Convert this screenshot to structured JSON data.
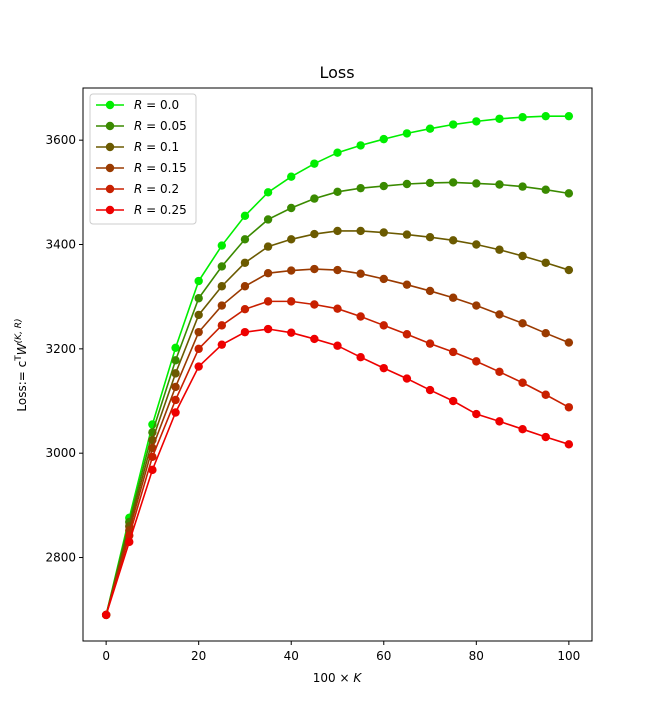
{
  "chart_data": {
    "type": "line",
    "title": "Loss",
    "xlabel": {
      "prefix": "100 × ",
      "var": "K"
    },
    "ylabel": {
      "prefix": "Loss:= c",
      "sup": "T",
      "mid": "W",
      "sup2": "(K, R)"
    },
    "xlim": [
      -5,
      105
    ],
    "ylim": [
      2640,
      3700
    ],
    "xticks": [
      0,
      20,
      40,
      60,
      80,
      100
    ],
    "yticks": [
      2800,
      3000,
      3200,
      3400,
      3600
    ],
    "grid": false,
    "legend_position": "top-left",
    "x": [
      0,
      5,
      10,
      15,
      20,
      25,
      30,
      35,
      40,
      45,
      50,
      55,
      60,
      65,
      70,
      75,
      80,
      85,
      90,
      95,
      100
    ],
    "series": [
      {
        "name": "R = 0.0",
        "legend_var": "R",
        "legend_val": "= 0.0",
        "color": "#00ee00",
        "values": [
          2690,
          2876,
          3055,
          3202,
          3330,
          3398,
          3455,
          3500,
          3530,
          3555,
          3576,
          3590,
          3602,
          3613,
          3622,
          3630,
          3636,
          3641,
          3644,
          3646,
          3646
        ]
      },
      {
        "name": "R = 0.05",
        "legend_var": "R",
        "legend_val": "= 0.05",
        "color": "#3a8a00",
        "values": [
          2690,
          2868,
          3040,
          3178,
          3297,
          3358,
          3410,
          3448,
          3470,
          3488,
          3501,
          3508,
          3512,
          3516,
          3518,
          3519,
          3517,
          3515,
          3511,
          3505,
          3498
        ]
      },
      {
        "name": "R = 0.1",
        "legend_var": "R",
        "legend_val": "= 0.1",
        "color": "#6b5a00",
        "values": [
          2690,
          2860,
          3025,
          3153,
          3265,
          3320,
          3365,
          3396,
          3410,
          3420,
          3426,
          3426,
          3423,
          3419,
          3414,
          3408,
          3400,
          3390,
          3378,
          3365,
          3351
        ]
      },
      {
        "name": "R = 0.15",
        "legend_var": "R",
        "legend_val": "= 0.15",
        "color": "#9a3a00",
        "values": [
          2690,
          2852,
          3010,
          3127,
          3232,
          3283,
          3320,
          3345,
          3350,
          3353,
          3351,
          3344,
          3334,
          3323,
          3311,
          3298,
          3283,
          3266,
          3249,
          3230,
          3212
        ]
      },
      {
        "name": "R = 0.2",
        "legend_var": "R",
        "legend_val": "= 0.2",
        "color": "#c82000",
        "values": [
          2690,
          2842,
          2993,
          3102,
          3200,
          3245,
          3276,
          3291,
          3291,
          3285,
          3277,
          3262,
          3245,
          3228,
          3210,
          3194,
          3176,
          3156,
          3135,
          3112,
          3088
        ]
      },
      {
        "name": "R = 0.25",
        "legend_var": "R",
        "legend_val": "= 0.25",
        "color": "#ee0000",
        "values": [
          2690,
          2830,
          2968,
          3078,
          3166,
          3208,
          3232,
          3238,
          3231,
          3219,
          3206,
          3184,
          3163,
          3143,
          3121,
          3100,
          3075,
          3061,
          3046,
          3031,
          3017
        ]
      }
    ]
  }
}
